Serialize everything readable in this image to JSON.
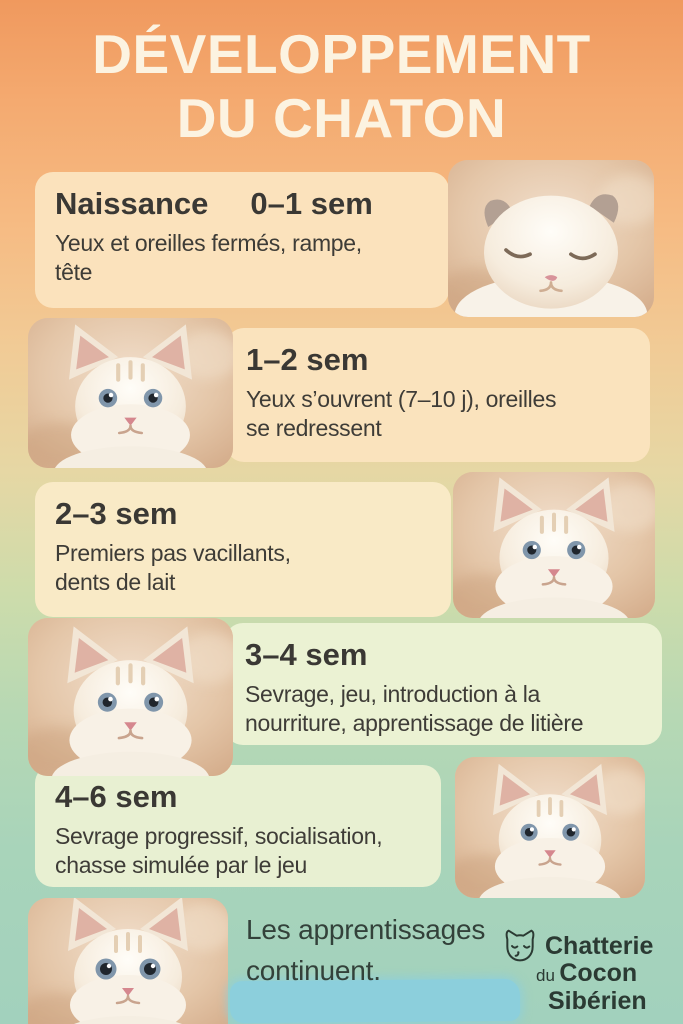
{
  "title": {
    "line1": "DÉVELOPPEMENT",
    "line2": "DU CHATON"
  },
  "stages": [
    {
      "name": "Naissance",
      "period": "0–1 sem",
      "description": "Yeux et oreilles fermés, rampe,\ntête",
      "photo": "sleeping-newborn-kitten"
    },
    {
      "period": "1–2 sem",
      "description": "Yeux s’ouvrent (7–10 j), oreilles\nse redressent",
      "photo": "blue-eyed-kitten-portrait"
    },
    {
      "period": "2–3 sem",
      "description": "Premiers pas vacillants,\ndents de lait",
      "photo": "kitten-with-raised-paw"
    },
    {
      "period": "3–4 sem",
      "description": "Sevrage, jeu, introduction à la\nnourriture, apprentissage de litière",
      "photo": "fluffy-kitten-portrait"
    },
    {
      "period": "4–6 sem",
      "description": "Sevrage progressif, socialisation,\nchasse simulée par le jeu",
      "photo": "close-up-kitten-face"
    },
    {
      "description": "Les apprentissages\ncontinuent.",
      "photo": "kitten-looking-up"
    }
  ],
  "brand": {
    "line1": "Chatterie",
    "line2_small": "du",
    "line2_bold": "Cocon",
    "line3": "Sibérien",
    "icon": "cat-face-outline-icon"
  },
  "colors": {
    "background_top": "#f0995e",
    "background_bottom": "#a2d1bd",
    "title_text": "#fcf3e1",
    "card_peach": "#fbe2bc",
    "card_cream": "#f9eac6",
    "card_green": "#ebf2d3",
    "body_text": "#3e3c37",
    "footer_text": "#33413a",
    "brand_text": "#2b3a33",
    "brush_blue": "#8ccfdc"
  }
}
